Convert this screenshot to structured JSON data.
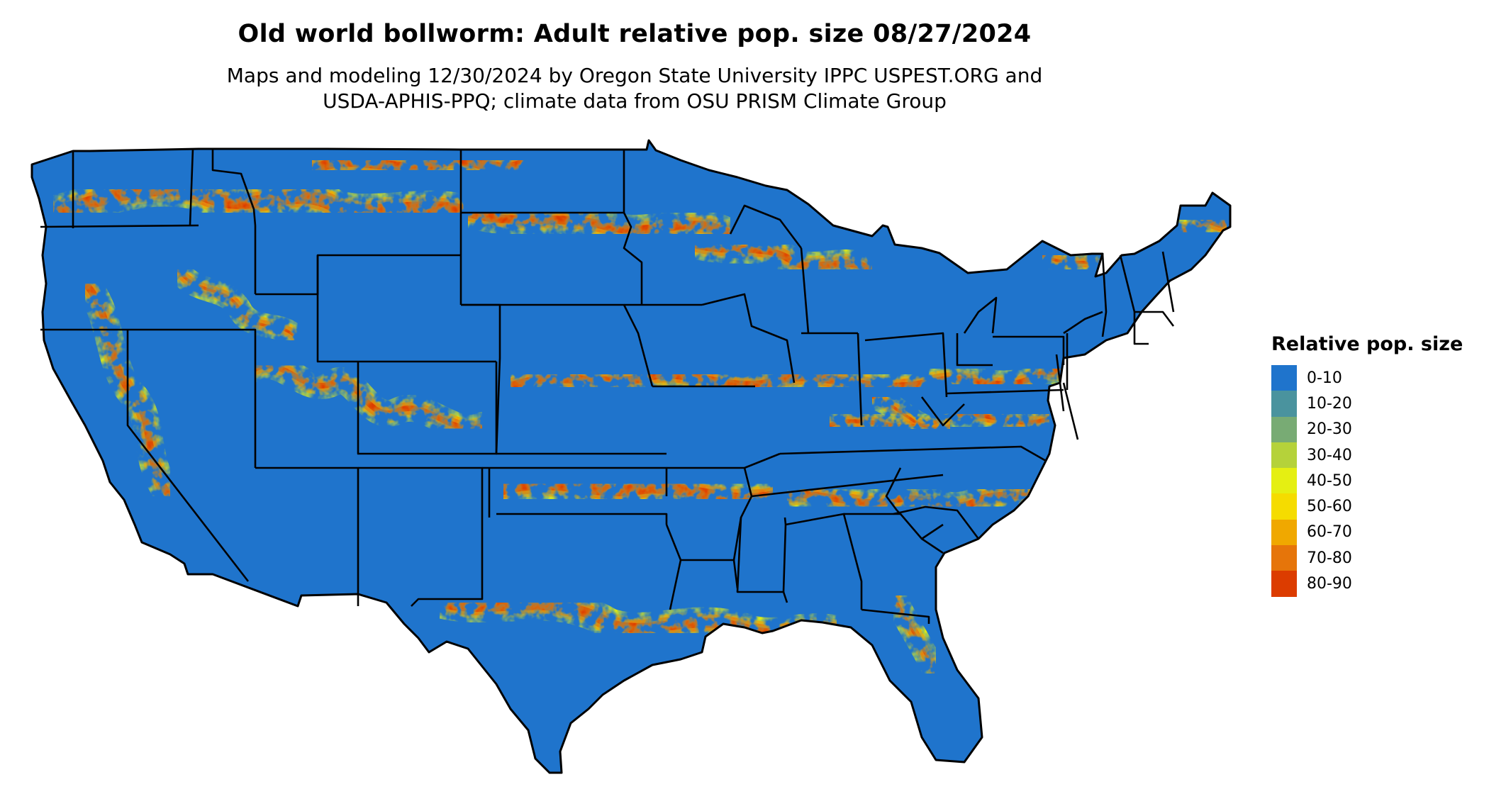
{
  "title": "Old world bollworm: Adult relative pop. size 08/27/2024",
  "subtitle_line1": "Maps and modeling 12/30/2024 by Oregon State University IPPC USPEST.ORG and",
  "subtitle_line2": "USDA-APHIS-PPQ; climate data from OSU PRISM Climate Group",
  "legend": {
    "title": "Relative pop. size",
    "items": [
      {
        "label": "0-10",
        "color": "#1f74cc"
      },
      {
        "label": "10-20",
        "color": "#4a939e"
      },
      {
        "label": "20-30",
        "color": "#78ab74"
      },
      {
        "label": "30-40",
        "color": "#b5d23a"
      },
      {
        "label": "40-50",
        "color": "#e5ef12"
      },
      {
        "label": "50-60",
        "color": "#f5dc00"
      },
      {
        "label": "60-70",
        "color": "#f0a800"
      },
      {
        "label": "70-80",
        "color": "#e6750a"
      },
      {
        "label": "80-90",
        "color": "#dc3c00"
      }
    ]
  },
  "map": {
    "region": "Contiguous United States",
    "boundaries": "state outlines",
    "land_color": "#1f74cc",
    "background": "#ffffff"
  }
}
